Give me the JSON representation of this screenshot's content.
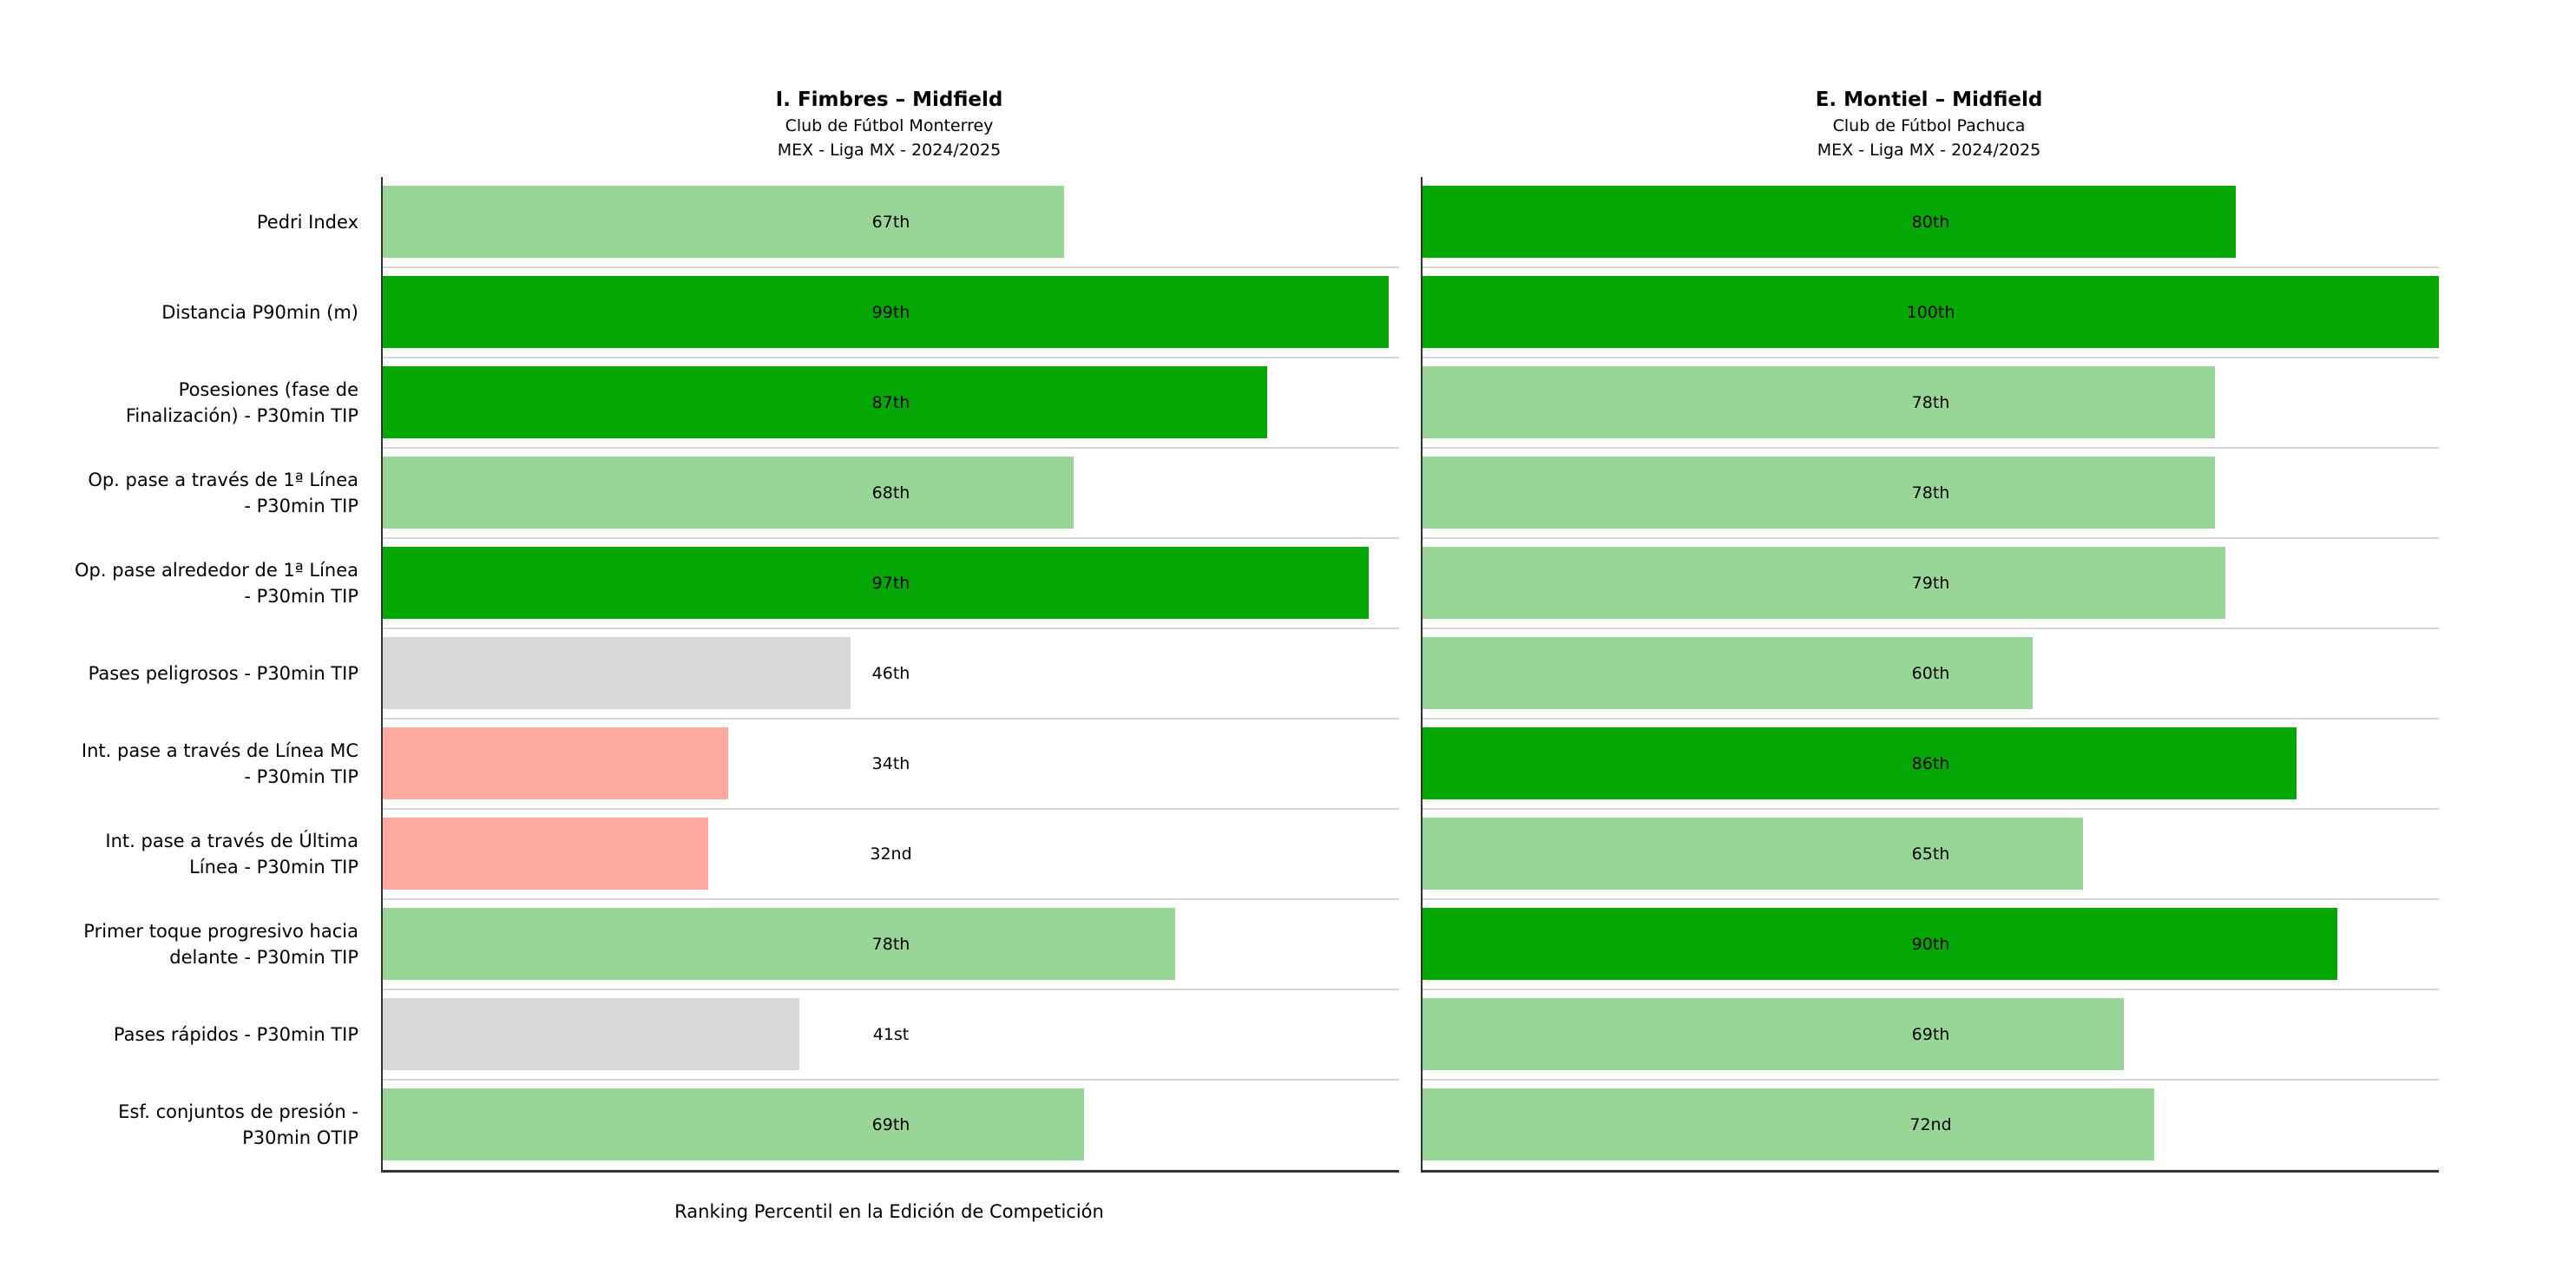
{
  "figure": {
    "xlabel": "Ranking Percentil en la Edición de Competición"
  },
  "palette": {
    "dark_green": "#05a705",
    "light_green": "#98d698",
    "gray": "#d9d7da",
    "salmon": "#ffa99f",
    "spine": "#333333",
    "gridline": "#d8d8d8",
    "background": "#ffffff",
    "text": "#000000"
  },
  "chart_data": [
    {
      "type": "bar",
      "orientation": "horizontal",
      "legend": "none",
      "grid": "row-separators",
      "title": "I. Fimbres – Midfield",
      "club": "Club de Fútbol Monterrey",
      "league": "MEX - Liga MX - 2024/2025",
      "xlabel": "Ranking Percentil en la Edición de Competición",
      "xlim": [
        0,
        100
      ],
      "categories": [
        "Pedri Index",
        "Distancia P90min (m)",
        "Posesiones (fase de\nFinalización) - P30min TIP",
        "Op. pase a través de 1ª Línea\n- P30min TIP",
        "Op. pase alrededor de 1ª Línea\n- P30min TIP",
        "Pases peligrosos - P30min TIP",
        "Int. pase a través de Línea MC\n- P30min TIP",
        "Int. pase a través de Última\nLínea - P30min TIP",
        "Primer toque progresivo hacia\ndelante - P30min TIP",
        "Pases rápidos - P30min TIP",
        "Esf. conjuntos de presión -\nP30min OTIP"
      ],
      "rows": [
        {
          "value": 67,
          "value_label": "67th",
          "color": "#98d698"
        },
        {
          "value": 99,
          "value_label": "99th",
          "color": "#05a705"
        },
        {
          "value": 87,
          "value_label": "87th",
          "color": "#05a705"
        },
        {
          "value": 68,
          "value_label": "68th",
          "color": "#98d698"
        },
        {
          "value": 97,
          "value_label": "97th",
          "color": "#05a705"
        },
        {
          "value": 46,
          "value_label": "46th",
          "color": "#d9d7da"
        },
        {
          "value": 34,
          "value_label": "34th",
          "color": "#ffa99f"
        },
        {
          "value": 32,
          "value_label": "32nd",
          "color": "#ffa99f"
        },
        {
          "value": 78,
          "value_label": "78th",
          "color": "#98d698"
        },
        {
          "value": 41,
          "value_label": "41st",
          "color": "#d9d7da"
        },
        {
          "value": 69,
          "value_label": "69th",
          "color": "#98d698"
        }
      ]
    },
    {
      "type": "bar",
      "orientation": "horizontal",
      "legend": "none",
      "grid": "row-separators",
      "title": "E. Montiel – Midfield",
      "club": "Club de Fútbol Pachuca",
      "league": "MEX - Liga MX - 2024/2025",
      "xlabel": "",
      "xlim": [
        0,
        100
      ],
      "categories": "shared-with-left-chart",
      "rows": [
        {
          "value": 80,
          "value_label": "80th",
          "color": "#05a705"
        },
        {
          "value": 100,
          "value_label": "100th",
          "color": "#05a705"
        },
        {
          "value": 78,
          "value_label": "78th",
          "color": "#98d698"
        },
        {
          "value": 78,
          "value_label": "78th",
          "color": "#98d698"
        },
        {
          "value": 79,
          "value_label": "79th",
          "color": "#98d698"
        },
        {
          "value": 60,
          "value_label": "60th",
          "color": "#98d698"
        },
        {
          "value": 86,
          "value_label": "86th",
          "color": "#05a705"
        },
        {
          "value": 65,
          "value_label": "65th",
          "color": "#98d698"
        },
        {
          "value": 90,
          "value_label": "90th",
          "color": "#05a705"
        },
        {
          "value": 69,
          "value_label": "69th",
          "color": "#98d698"
        },
        {
          "value": 72,
          "value_label": "72nd",
          "color": "#98d698"
        }
      ]
    }
  ]
}
